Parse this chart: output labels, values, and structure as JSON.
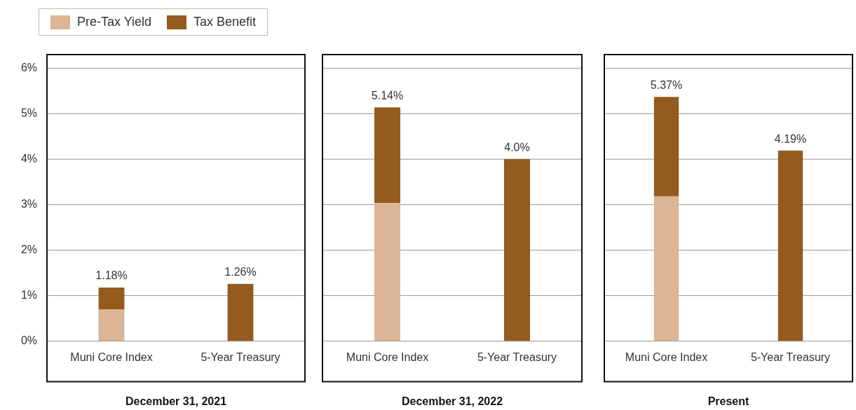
{
  "chart_data": [
    {
      "type": "bar",
      "xlabel": "December 31, 2021",
      "categories": [
        "Muni Core Index",
        "5-Year Treasury"
      ],
      "stacked": true,
      "legend": "top left",
      "grid": "y",
      "series": [
        {
          "name": "Pre-Tax Yield",
          "color": "#dbb595",
          "values": [
            0.7,
            null
          ]
        },
        {
          "name": "Tax Benefit",
          "color": "#955a1e",
          "values": [
            0.48,
            1.26
          ]
        }
      ],
      "totals": [
        "1.18%",
        "1.26%"
      ],
      "ylim": [
        0,
        6.3
      ],
      "yticks": [
        {
          "value": 0,
          "label": "0%"
        },
        {
          "value": 1,
          "label": "1%"
        },
        {
          "value": 2,
          "label": "2%"
        },
        {
          "value": 3,
          "label": "3%"
        },
        {
          "value": 4,
          "label": "4%"
        },
        {
          "value": 5,
          "label": "5%"
        },
        {
          "value": 6,
          "label": "6%"
        }
      ]
    },
    {
      "type": "bar",
      "xlabel": "December 31, 2022",
      "categories": [
        "Muni Core Index",
        "5-Year Treasury"
      ],
      "stacked": true,
      "grid": "y",
      "tick_labels": "x",
      "series": [
        {
          "color": "#dbb595",
          "values": [
            3.04,
            null
          ]
        },
        {
          "color": "#955a1e",
          "values": [
            2.1,
            4.0
          ]
        }
      ],
      "totals": [
        "5.14%",
        "4.0%"
      ],
      "ylim": [
        0,
        6.3
      ],
      "yticks": [
        0,
        1,
        2,
        3,
        4,
        5,
        6
      ]
    },
    {
      "type": "bar",
      "xlabel": "Present",
      "categories": [
        "Muni Core Index",
        "5-Year Treasury"
      ],
      "stacked": true,
      "grid": "y",
      "tick_labels": "x",
      "series": [
        {
          "color": "#dbb595",
          "values": [
            3.18,
            null
          ]
        },
        {
          "color": "#955a1e",
          "values": [
            2.19,
            4.19
          ]
        }
      ],
      "totals": [
        "5.37%",
        "4.19%"
      ],
      "ylim": [
        0,
        6.3
      ],
      "yticks": [
        0,
        1,
        2,
        3,
        4,
        5,
        6
      ]
    }
  ]
}
